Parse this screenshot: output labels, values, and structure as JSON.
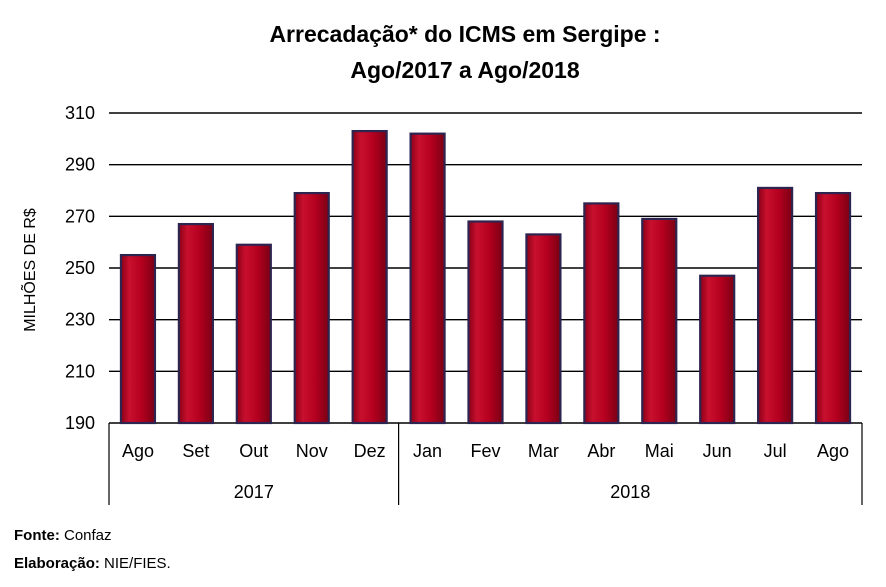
{
  "chart_data": {
    "type": "bar",
    "title_lines": [
      "Arrecadação* do ICMS em Sergipe :",
      "Ago/2017 a  Ago/2018"
    ],
    "ylabel": "MILHÕES DE R$",
    "ylim": [
      190,
      310
    ],
    "yticks": [
      190,
      210,
      230,
      250,
      270,
      290,
      310
    ],
    "categories": [
      "Ago",
      "Set",
      "Out",
      "Nov",
      "Dez",
      "Jan",
      "Fev",
      "Mar",
      "Abr",
      "Mai",
      "Jun",
      "Jul",
      "Ago"
    ],
    "values": [
      255,
      267,
      259,
      279,
      303,
      302,
      268,
      263,
      275,
      269,
      247,
      281,
      279
    ],
    "groups": [
      {
        "label": "2017",
        "count": 5
      },
      {
        "label": "2018",
        "count": 8
      }
    ],
    "bar_color": "#b5001f",
    "bar_edge_color": "#2e2450",
    "grid": true
  },
  "footer": {
    "source_label": "Fonte:",
    "source_value": "Confaz",
    "credit_label": "Elaboração:",
    "credit_value": "NIE/FIES."
  }
}
